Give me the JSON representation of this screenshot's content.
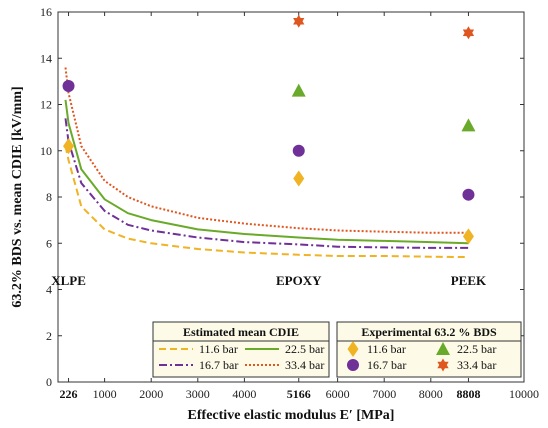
{
  "chart_data": {
    "type": "line",
    "xlabel": "Effective elastic modulus E′ [MPa]",
    "ylabel": "63.2% BDS vs. mean CDIE [kV/mm]",
    "xlim": [
      0,
      10000
    ],
    "ylim": [
      0,
      16
    ],
    "x_ticks": [
      "226",
      "1000",
      "2000",
      "3000",
      "4000",
      "5166",
      "6000",
      "7000",
      "8000",
      "8808",
      "10000"
    ],
    "x_tick_values": [
      226,
      1000,
      2000,
      3000,
      4000,
      5166,
      6000,
      7000,
      8000,
      8808,
      10000
    ],
    "x_ticks_bold": [
      "226",
      "5166",
      "8808"
    ],
    "y_ticks": [
      0,
      2,
      4,
      6,
      8,
      10,
      12,
      14,
      16
    ],
    "grid": false,
    "materials": [
      {
        "name": "XLPE",
        "x": 226
      },
      {
        "name": "EPOXY",
        "x": 5166
      },
      {
        "name": "PEEK",
        "x": 8808
      }
    ],
    "legends": [
      {
        "title": "Estimated mean CDIE",
        "placement": "bottom-center",
        "entries": [
          "11.6 bar",
          "22.5 bar",
          "16.7 bar",
          "33.4 bar"
        ]
      },
      {
        "title": "Experimental 63.2 % BDS",
        "placement": "bottom-right",
        "entries": [
          "11.6 bar",
          "22.5 bar",
          "16.7 bar",
          "33.4 bar"
        ]
      }
    ],
    "line_series": [
      {
        "name": "11.6 bar",
        "color": "#f0b323",
        "style": "dashed",
        "x": [
          160,
          226,
          500,
          1000,
          1500,
          2000,
          3000,
          4000,
          5166,
          6000,
          7000,
          8000,
          8808
        ],
        "y": [
          10.2,
          9.6,
          7.6,
          6.6,
          6.2,
          6.0,
          5.75,
          5.6,
          5.5,
          5.45,
          5.45,
          5.42,
          5.4
        ]
      },
      {
        "name": "22.5 bar",
        "color": "#6aaa2a",
        "style": "solid",
        "x": [
          160,
          226,
          500,
          1000,
          1500,
          2000,
          3000,
          4000,
          5166,
          6000,
          7000,
          8000,
          8808
        ],
        "y": [
          12.2,
          11.2,
          9.2,
          7.9,
          7.3,
          7.0,
          6.6,
          6.4,
          6.25,
          6.15,
          6.1,
          6.05,
          6.0
        ]
      },
      {
        "name": "16.7 bar",
        "color": "#6f3098",
        "style": "dashdot",
        "x": [
          160,
          226,
          500,
          1000,
          1500,
          2000,
          3000,
          4000,
          5166,
          6000,
          7000,
          8000,
          8808
        ],
        "y": [
          11.4,
          10.4,
          8.6,
          7.4,
          6.8,
          6.55,
          6.25,
          6.05,
          5.95,
          5.85,
          5.82,
          5.8,
          5.8
        ]
      },
      {
        "name": "33.4 bar",
        "color": "#e0561f",
        "style": "dotted",
        "x": [
          160,
          226,
          500,
          1000,
          1500,
          2000,
          3000,
          4000,
          5166,
          6000,
          7000,
          8000,
          8808
        ],
        "y": [
          13.6,
          12.5,
          10.2,
          8.7,
          8.0,
          7.6,
          7.1,
          6.85,
          6.65,
          6.55,
          6.5,
          6.45,
          6.45
        ]
      }
    ],
    "scatter_series": [
      {
        "name": "11.6 bar",
        "color": "#f0b323",
        "marker": "diamond",
        "x": [
          226,
          5166,
          8808
        ],
        "y": [
          10.2,
          8.8,
          6.3
        ]
      },
      {
        "name": "22.5 bar",
        "color": "#6aaa2a",
        "marker": "triangle",
        "x": [
          5166,
          8808
        ],
        "y": [
          12.6,
          11.1
        ]
      },
      {
        "name": "16.7 bar",
        "color": "#6f3098",
        "marker": "circle",
        "x": [
          226,
          5166,
          8808
        ],
        "y": [
          12.8,
          10.0,
          8.1
        ]
      },
      {
        "name": "33.4 bar",
        "color": "#e0561f",
        "marker": "hexagram",
        "x": [
          5166,
          8808
        ],
        "y": [
          15.6,
          15.1
        ]
      }
    ]
  }
}
